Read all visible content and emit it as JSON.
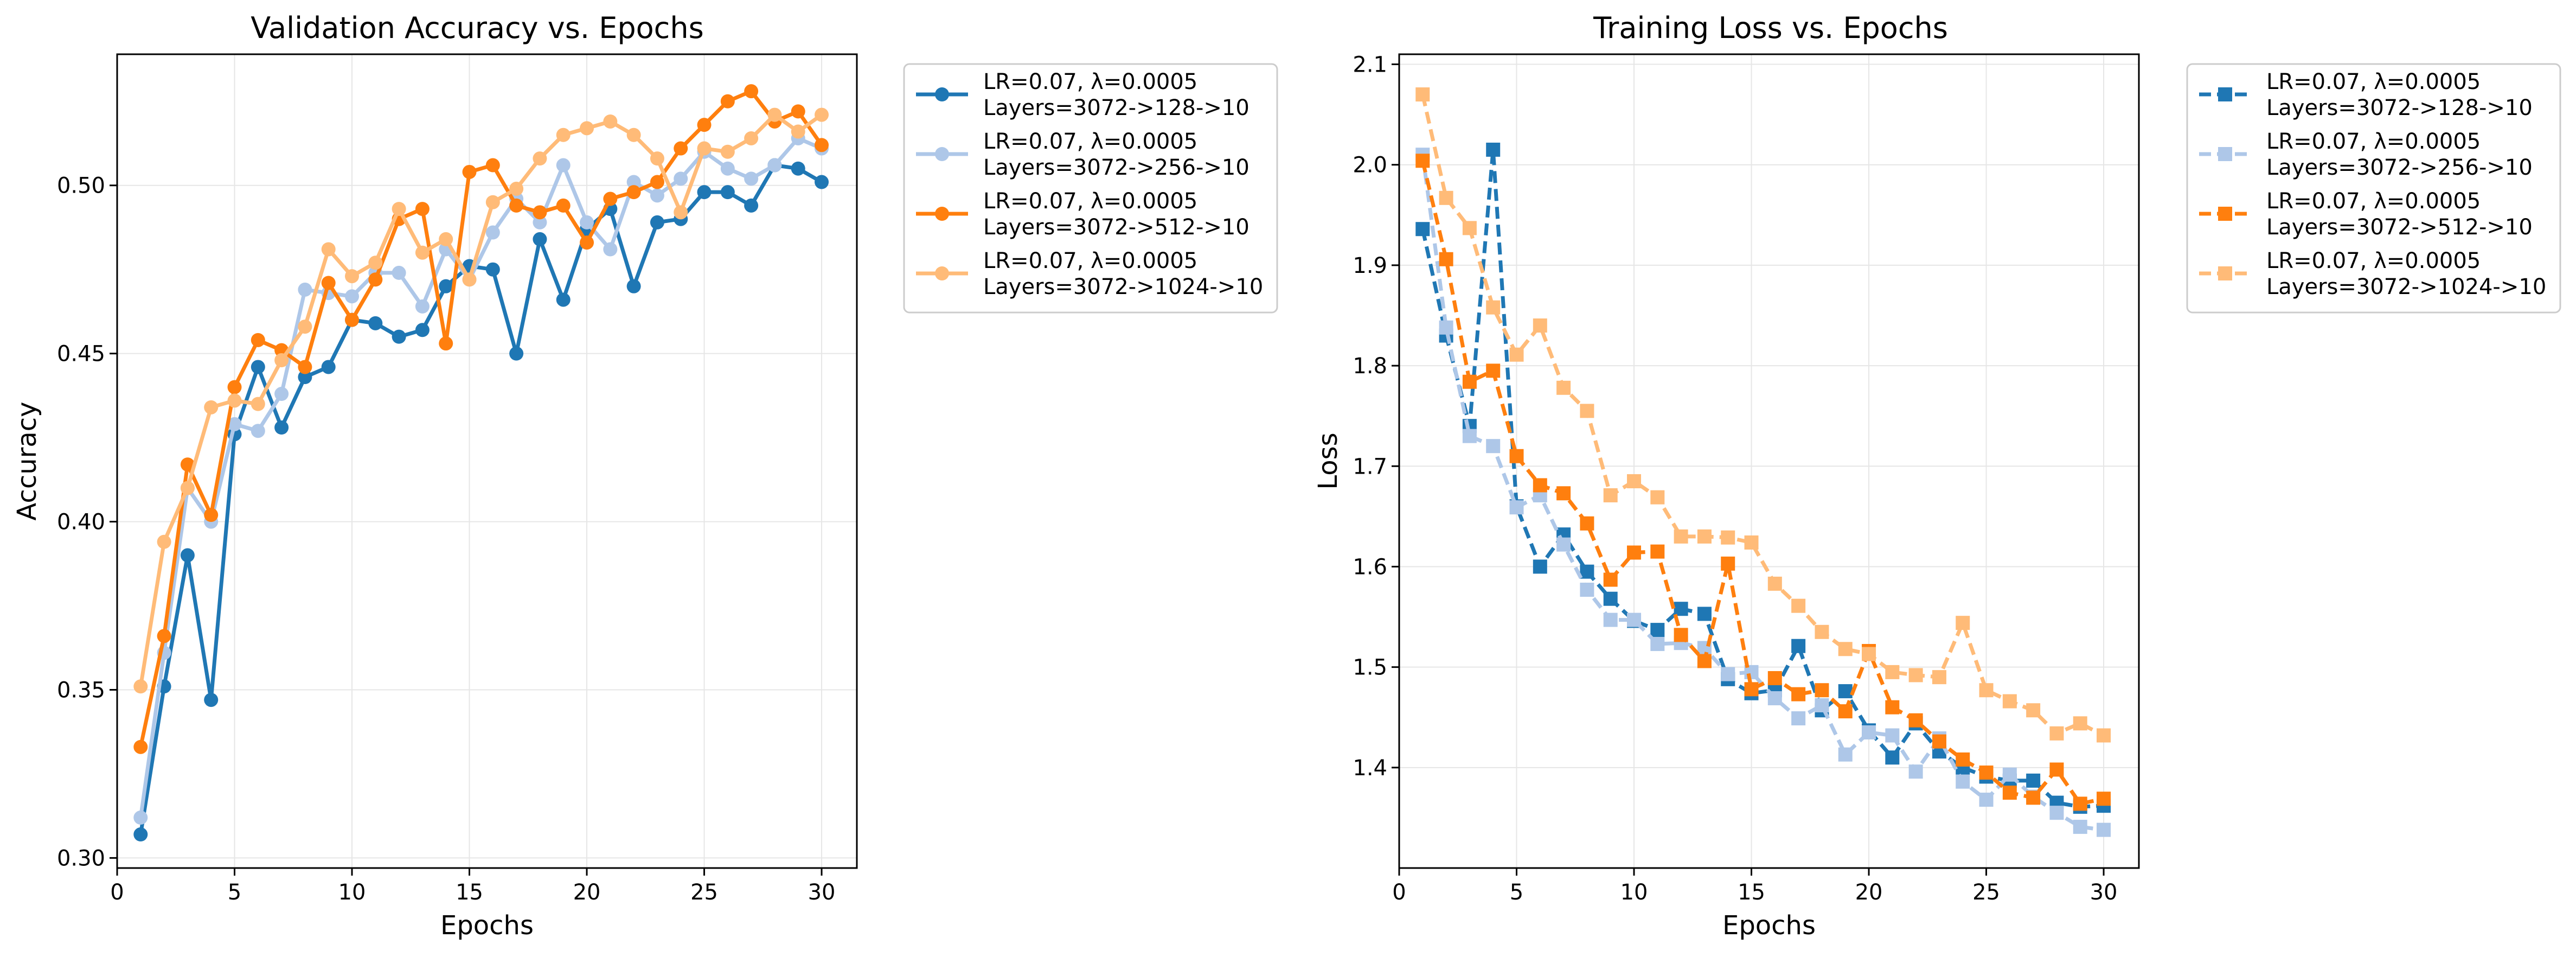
{
  "chart_data": [
    {
      "type": "line",
      "title": "Validation Accuracy vs. Epochs",
      "xlabel": "Epochs",
      "ylabel": "Accuracy",
      "xlim": [
        0,
        31.5
      ],
      "ylim": [
        0.297,
        0.539
      ],
      "xticks": [
        0,
        5,
        10,
        15,
        20,
        25,
        30
      ],
      "yticks": [
        0.3,
        0.35,
        0.4,
        0.45,
        0.5
      ],
      "ytick_labels": [
        "0.30",
        "0.35",
        "0.40",
        "0.45",
        "0.50"
      ],
      "grid": true,
      "legend_placement": "outside-upper-right",
      "marker": "circle",
      "line_style": "solid",
      "x": [
        1,
        2,
        3,
        4,
        5,
        6,
        7,
        8,
        9,
        10,
        11,
        12,
        13,
        14,
        15,
        16,
        17,
        18,
        19,
        20,
        21,
        22,
        23,
        24,
        25,
        26,
        27,
        28,
        29,
        30
      ],
      "series": [
        {
          "name": "LR=0.07, λ=0.0005\nLayers=3072->128->10",
          "color": "#1f77b4",
          "values": [
            0.307,
            0.351,
            0.39,
            0.347,
            0.426,
            0.446,
            0.428,
            0.443,
            0.446,
            0.46,
            0.459,
            0.455,
            0.457,
            0.47,
            0.476,
            0.475,
            0.45,
            0.484,
            0.466,
            0.487,
            0.493,
            0.47,
            0.489,
            0.49,
            0.498,
            0.498,
            0.494,
            0.506,
            0.505,
            0.501
          ]
        },
        {
          "name": "LR=0.07, λ=0.0005\nLayers=3072->256->10",
          "color": "#aec7e8",
          "values": [
            0.312,
            0.361,
            0.41,
            0.4,
            0.429,
            0.427,
            0.438,
            0.469,
            0.468,
            0.467,
            0.474,
            0.474,
            0.464,
            0.481,
            0.472,
            0.486,
            0.496,
            0.489,
            0.506,
            0.489,
            0.481,
            0.501,
            0.497,
            0.502,
            0.51,
            0.505,
            0.502,
            0.506,
            0.514,
            0.511
          ]
        },
        {
          "name": "LR=0.07, λ=0.0005\nLayers=3072->512->10",
          "color": "#ff7f0e",
          "values": [
            0.333,
            0.366,
            0.417,
            0.402,
            0.44,
            0.454,
            0.451,
            0.446,
            0.471,
            0.46,
            0.472,
            0.49,
            0.493,
            0.453,
            0.504,
            0.506,
            0.494,
            0.492,
            0.494,
            0.483,
            0.496,
            0.498,
            0.501,
            0.511,
            0.518,
            0.525,
            0.528,
            0.519,
            0.522,
            0.512
          ]
        },
        {
          "name": "LR=0.07, λ=0.0005\nLayers=3072->1024->10",
          "color": "#ffbb78",
          "values": [
            0.351,
            0.394,
            0.41,
            0.434,
            0.436,
            0.435,
            0.448,
            0.458,
            0.481,
            0.473,
            0.477,
            0.493,
            0.48,
            0.484,
            0.472,
            0.495,
            0.499,
            0.508,
            0.515,
            0.517,
            0.519,
            0.515,
            0.508,
            0.492,
            0.511,
            0.51,
            0.514,
            0.521,
            0.516,
            0.521
          ]
        }
      ]
    },
    {
      "type": "line",
      "title": "Training Loss vs. Epochs",
      "xlabel": "Epochs",
      "ylabel": "Loss",
      "xlim": [
        0,
        31.5
      ],
      "ylim": [
        1.3,
        2.11
      ],
      "xticks": [
        0,
        5,
        10,
        15,
        20,
        25,
        30
      ],
      "yticks": [
        1.4,
        1.5,
        1.6,
        1.7,
        1.8,
        1.9,
        2.0,
        2.1
      ],
      "ytick_labels": [
        "1.4",
        "1.5",
        "1.6",
        "1.7",
        "1.8",
        "1.9",
        "2.0",
        "2.1"
      ],
      "grid": true,
      "legend_placement": "outside-upper-right",
      "marker": "square",
      "line_style": "dashed",
      "x": [
        1,
        2,
        3,
        4,
        5,
        6,
        7,
        8,
        9,
        10,
        11,
        12,
        13,
        14,
        15,
        16,
        17,
        18,
        19,
        20,
        21,
        22,
        23,
        24,
        25,
        26,
        27,
        28,
        29,
        30
      ],
      "series": [
        {
          "name": "LR=0.07, λ=0.0005\nLayers=3072->128->10",
          "color": "#1f77b4",
          "values": [
            1.936,
            1.83,
            1.74,
            2.015,
            1.66,
            1.6,
            1.632,
            1.595,
            1.568,
            1.546,
            1.537,
            1.558,
            1.553,
            1.488,
            1.474,
            1.477,
            1.521,
            1.457,
            1.476,
            1.437,
            1.41,
            1.444,
            1.416,
            1.4,
            1.391,
            1.387,
            1.387,
            1.365,
            1.361,
            1.362
          ]
        },
        {
          "name": "LR=0.07, λ=0.0005\nLayers=3072->256->10",
          "color": "#aec7e8",
          "values": [
            2.01,
            1.838,
            1.73,
            1.72,
            1.659,
            1.671,
            1.622,
            1.577,
            1.547,
            1.547,
            1.523,
            1.524,
            1.519,
            1.493,
            1.495,
            1.469,
            1.449,
            1.462,
            1.413,
            1.435,
            1.432,
            1.396,
            1.429,
            1.386,
            1.368,
            1.393,
            1.371,
            1.355,
            1.341,
            1.338
          ]
        },
        {
          "name": "LR=0.07, λ=0.0005\nLayers=3072->512->10",
          "color": "#ff7f0e",
          "values": [
            2.004,
            1.906,
            1.784,
            1.795,
            1.71,
            1.681,
            1.673,
            1.643,
            1.587,
            1.614,
            1.615,
            1.532,
            1.506,
            1.603,
            1.478,
            1.489,
            1.473,
            1.477,
            1.456,
            1.516,
            1.46,
            1.447,
            1.426,
            1.408,
            1.395,
            1.375,
            1.37,
            1.398,
            1.364,
            1.369
          ]
        },
        {
          "name": "LR=0.07, λ=0.0005\nLayers=3072->1024->10",
          "color": "#ffbb78",
          "values": [
            2.07,
            1.967,
            1.937,
            1.858,
            1.811,
            1.84,
            1.778,
            1.755,
            1.671,
            1.685,
            1.669,
            1.63,
            1.63,
            1.629,
            1.624,
            1.583,
            1.561,
            1.535,
            1.518,
            1.513,
            1.495,
            1.492,
            1.49,
            1.544,
            1.477,
            1.466,
            1.457,
            1.434,
            1.444,
            1.432
          ]
        }
      ]
    }
  ]
}
